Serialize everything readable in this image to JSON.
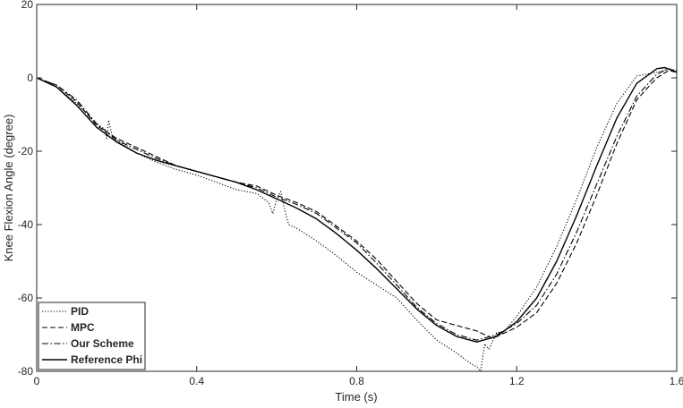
{
  "chart_data": {
    "type": "line",
    "title": "",
    "xlabel": "Time (s)",
    "ylabel": "Knee Flexion Angle (degree)",
    "xlim": [
      0,
      1.6
    ],
    "ylim": [
      -80,
      20
    ],
    "xticks": [
      0,
      0.4,
      0.8,
      1.2,
      1.6
    ],
    "xtick_labels": [
      "0",
      "0.4",
      "0.8",
      "1.2",
      "1.6"
    ],
    "yticks": [
      -80,
      -60,
      -40,
      -20,
      0,
      20
    ],
    "ytick_labels": [
      "-80",
      "-60",
      "-40",
      "-20",
      "0",
      "20"
    ],
    "grid": false,
    "legend_position": "bottom-left",
    "series": [
      {
        "name": "PID",
        "style": "dotted",
        "color": "#000000",
        "x": [
          0,
          0.05,
          0.1,
          0.15,
          0.17,
          0.175,
          0.18,
          0.19,
          0.2,
          0.25,
          0.3,
          0.35,
          0.4,
          0.45,
          0.5,
          0.55,
          0.58,
          0.59,
          0.6,
          0.61,
          0.62,
          0.63,
          0.65,
          0.7,
          0.75,
          0.8,
          0.85,
          0.9,
          0.95,
          1.0,
          1.05,
          1.08,
          1.1,
          1.11,
          1.115,
          1.12,
          1.13,
          1.15,
          1.17,
          1.2,
          1.25,
          1.3,
          1.35,
          1.4,
          1.45,
          1.5,
          1.55,
          1.58,
          1.6
        ],
        "y": [
          0,
          -2.5,
          -7,
          -12.5,
          -14,
          -16.5,
          -11.5,
          -16.5,
          -17,
          -20.5,
          -23,
          -25,
          -26.5,
          -28.5,
          -30.5,
          -31.5,
          -34,
          -37,
          -33,
          -31,
          -36,
          -40,
          -41,
          -44.5,
          -48.5,
          -53,
          -56.5,
          -60,
          -66,
          -71.5,
          -75,
          -77.5,
          -78.8,
          -80,
          -76,
          -72.5,
          -74,
          -69.5,
          -69,
          -65,
          -57,
          -46,
          -33,
          -19,
          -7,
          0.5,
          1.5,
          2.5,
          2
        ]
      },
      {
        "name": "MPC",
        "style": "dashed",
        "color": "#000000",
        "x": [
          0,
          0.05,
          0.1,
          0.15,
          0.2,
          0.25,
          0.3,
          0.35,
          0.4,
          0.45,
          0.5,
          0.55,
          0.6,
          0.65,
          0.7,
          0.75,
          0.8,
          0.85,
          0.9,
          0.95,
          1.0,
          1.05,
          1.1,
          1.12,
          1.14,
          1.16,
          1.2,
          1.25,
          1.3,
          1.35,
          1.4,
          1.45,
          1.5,
          1.55,
          1.58,
          1.6
        ],
        "y": [
          0,
          -2,
          -6.5,
          -13,
          -16.5,
          -19,
          -21.5,
          -24,
          -25.5,
          -27,
          -28.5,
          -29.5,
          -32,
          -34,
          -36.5,
          -40.5,
          -44.5,
          -49.5,
          -55.5,
          -61.5,
          -66,
          -67.5,
          -69,
          -70,
          -71,
          -70,
          -68,
          -64,
          -56,
          -45,
          -32,
          -18,
          -6,
          0,
          2,
          1.5
        ]
      },
      {
        "name": "Our Scheme",
        "style": "dashdot",
        "color": "#000000",
        "x": [
          0,
          0.05,
          0.1,
          0.15,
          0.2,
          0.25,
          0.3,
          0.35,
          0.4,
          0.45,
          0.5,
          0.55,
          0.6,
          0.65,
          0.7,
          0.75,
          0.8,
          0.85,
          0.9,
          0.95,
          1.0,
          1.05,
          1.1,
          1.15,
          1.2,
          1.25,
          1.3,
          1.35,
          1.4,
          1.45,
          1.5,
          1.55,
          1.58,
          1.6
        ],
        "y": [
          0,
          -2,
          -6,
          -12.5,
          -17,
          -19.5,
          -22,
          -24,
          -25.5,
          -27,
          -28.5,
          -30,
          -32.5,
          -34.5,
          -37,
          -41,
          -45,
          -50.5,
          -56.5,
          -62.5,
          -67,
          -70,
          -71.5,
          -70,
          -67,
          -62,
          -53.5,
          -42,
          -29,
          -16,
          -5,
          1,
          2.5,
          1.5
        ]
      },
      {
        "name": "Reference Phi",
        "style": "solid",
        "color": "#000000",
        "x": [
          0,
          0.05,
          0.1,
          0.15,
          0.2,
          0.25,
          0.3,
          0.35,
          0.4,
          0.45,
          0.5,
          0.55,
          0.6,
          0.65,
          0.7,
          0.75,
          0.8,
          0.85,
          0.9,
          0.95,
          1.0,
          1.05,
          1.1,
          1.15,
          1.2,
          1.25,
          1.3,
          1.35,
          1.4,
          1.45,
          1.5,
          1.55,
          1.57,
          1.59,
          1.6
        ],
        "y": [
          0,
          -2.5,
          -7.5,
          -13.5,
          -17.5,
          -20.5,
          -22.5,
          -24,
          -25.5,
          -27,
          -28.5,
          -30.5,
          -33,
          -35.5,
          -38.5,
          -42.5,
          -47,
          -52,
          -57.5,
          -63,
          -67.5,
          -70.5,
          -72,
          -70.5,
          -66.5,
          -60,
          -50,
          -37.5,
          -24,
          -11,
          -1.5,
          2.5,
          2.8,
          2,
          1.5
        ]
      }
    ]
  }
}
